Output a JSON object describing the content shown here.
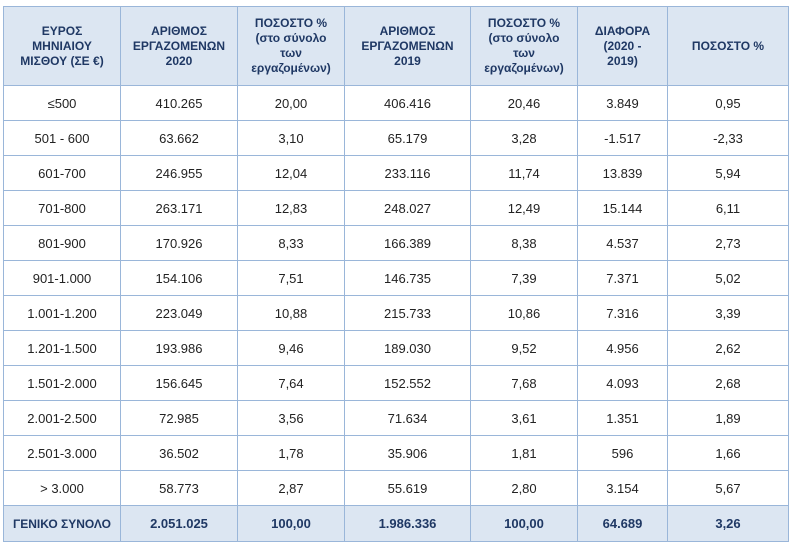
{
  "headers": [
    {
      "lines": [
        "ΕΥΡΟΣ",
        "ΜΗΝΙΑΙΟΥ",
        "ΜΙΣΘΟΥ (ΣΕ €)"
      ]
    },
    {
      "lines": [
        "ΑΡΙΘΜΟΣ",
        "ΕΡΓΑΖΟΜΕΝΩΝ",
        "2020"
      ]
    },
    {
      "lines": [
        "ΠΟΣΟΣΤΟ %",
        "(στο σύνολο",
        "των",
        "εργαζομένων)"
      ]
    },
    {
      "lines": [
        "ΑΡΙΘΜΟΣ",
        "ΕΡΓΑΖΟΜΕΝΩΝ",
        "2019"
      ]
    },
    {
      "lines": [
        "ΠΟΣΟΣΤΟ %",
        "(στο σύνολο",
        "των",
        "εργαζομένων)"
      ]
    },
    {
      "lines": [
        "ΔΙΑΦΟΡΑ",
        "(2020 -",
        "2019)"
      ]
    },
    {
      "lines": [
        "ΠΟΣΟΣΤΟ %"
      ]
    }
  ],
  "rows": [
    [
      "≤500",
      "410.265",
      "20,00",
      "406.416",
      "20,46",
      "3.849",
      "0,95"
    ],
    [
      "501 - 600",
      "63.662",
      "3,10",
      "65.179",
      "3,28",
      "-1.517",
      "-2,33"
    ],
    [
      "601-700",
      "246.955",
      "12,04",
      "233.116",
      "11,74",
      "13.839",
      "5,94"
    ],
    [
      "701-800",
      "263.171",
      "12,83",
      "248.027",
      "12,49",
      "15.144",
      "6,11"
    ],
    [
      "801-900",
      "170.926",
      "8,33",
      "166.389",
      "8,38",
      "4.537",
      "2,73"
    ],
    [
      "901-1.000",
      "154.106",
      "7,51",
      "146.735",
      "7,39",
      "7.371",
      "5,02"
    ],
    [
      "1.001-1.200",
      "223.049",
      "10,88",
      "215.733",
      "10,86",
      "7.316",
      "3,39"
    ],
    [
      "1.201-1.500",
      "193.986",
      "9,46",
      "189.030",
      "9,52",
      "4.956",
      "2,62"
    ],
    [
      "1.501-2.000",
      "156.645",
      "7,64",
      "152.552",
      "7,68",
      "4.093",
      "2,68"
    ],
    [
      "2.001-2.500",
      "72.985",
      "3,56",
      "71.634",
      "3,61",
      "1.351",
      "1,89"
    ],
    [
      "2.501-3.000",
      "36.502",
      "1,78",
      "35.906",
      "1,81",
      "596",
      "1,66"
    ],
    [
      "> 3.000",
      "58.773",
      "2,87",
      "55.619",
      "2,80",
      "3.154",
      "5,67"
    ]
  ],
  "total": [
    "ΓΕΝΙΚΟ ΣΥΝΟΛΟ",
    "2.051.025",
    "100,00",
    "1.986.336",
    "100,00",
    "64.689",
    "3,26"
  ],
  "colors": {
    "header_bg": "#dce6f2",
    "header_text": "#1f3864",
    "border": "#9ab6d9"
  }
}
